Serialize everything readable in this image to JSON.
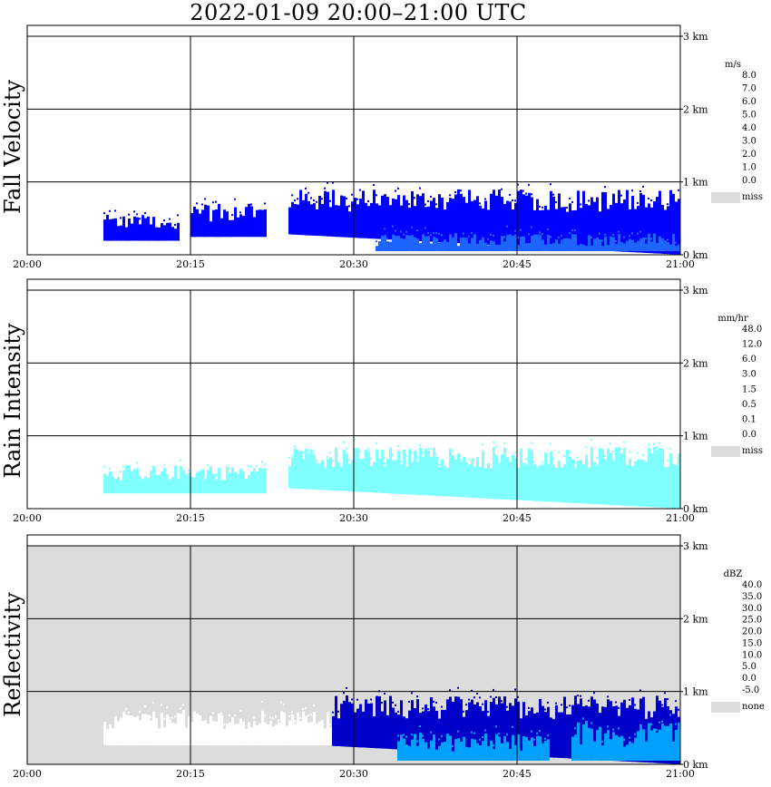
{
  "title": "2022-01-09   20:00–21:00 UTC",
  "chart_data": [
    {
      "type": "heatmap",
      "title": "Fall Velocity",
      "xlabel": "",
      "ylabel": "",
      "x_ticks": [
        "20:00",
        "20:15",
        "20:30",
        "20:45",
        "21:00"
      ],
      "y_ticks": [
        "0 km",
        "1 km",
        "2 km",
        "3 km"
      ],
      "xlim": [
        "20:00",
        "21:00"
      ],
      "ylim_km": [
        0,
        3.0
      ],
      "grid": true,
      "legend": {
        "unit": "m/s",
        "labels": [
          "8.0",
          "7.0",
          "6.0",
          "5.0",
          "4.0",
          "3.0",
          "2.0",
          "1.0",
          "0.0",
          "miss"
        ],
        "colors": [
          "#ff00ff",
          "#ff0000",
          "#ff7f00",
          "#ffbf00",
          "#c8ff00",
          "#00c800",
          "#00ffd0",
          "#00a0ff",
          "#0000ff"
        ],
        "miss_color": "#dcdcdc"
      },
      "echo_regions": [
        {
          "start_min": 7,
          "end_min": 14,
          "top_km": 0.55,
          "color": "#0000ff"
        },
        {
          "start_min": 15,
          "end_min": 22,
          "top_km": 0.7,
          "color": "#0000ff"
        },
        {
          "start_min": 24,
          "end_min": 60,
          "top_km": 0.9,
          "color": "#0000ff"
        }
      ],
      "secondary_regions": [
        {
          "start_min": 32,
          "end_min": 60,
          "top_km": 0.3,
          "color": "#1e64ff"
        }
      ]
    },
    {
      "type": "heatmap",
      "title": "Rain Intensity",
      "xlabel": "",
      "ylabel": "",
      "x_ticks": [
        "20:00",
        "20:15",
        "20:30",
        "20:45",
        "21:00"
      ],
      "y_ticks": [
        "0 km",
        "1 km",
        "2 km",
        "3 km"
      ],
      "xlim": [
        "20:00",
        "21:00"
      ],
      "ylim_km": [
        0,
        3.0
      ],
      "grid": true,
      "legend": {
        "unit": "mm/hr",
        "labels": [
          "48.0",
          "12.0",
          "6.0",
          "3.0",
          "1.5",
          "0.5",
          "0.1",
          "0.0",
          "miss"
        ],
        "colors": [
          "#000000",
          "#3c0030",
          "#a000a0",
          "#ff00ff",
          "#ff0000",
          "#ff7f00",
          "#ffff00",
          "#c8ff00",
          "#60ff30",
          "#00c800",
          "#0000ff",
          "#0078ff",
          "#00c8ff",
          "#80ffff",
          "#ffffff"
        ],
        "miss_color": "#dcdcdc"
      },
      "echo_regions": [
        {
          "start_min": 7,
          "end_min": 22,
          "top_km": 0.6,
          "color": "#80ffff"
        },
        {
          "start_min": 24,
          "end_min": 60,
          "top_km": 0.85,
          "color": "#80ffff"
        }
      ],
      "secondary_regions": []
    },
    {
      "type": "heatmap",
      "title": "Reflectivity",
      "xlabel": "",
      "ylabel": "",
      "x_ticks": [
        "20:00",
        "20:15",
        "20:30",
        "20:45",
        "21:00"
      ],
      "y_ticks": [
        "0 km",
        "1 km",
        "2 km",
        "3 km"
      ],
      "xlim": [
        "20:00",
        "21:00"
      ],
      "ylim_km": [
        0,
        3.0
      ],
      "grid": true,
      "background": "#dcdcdc",
      "legend": {
        "unit": "dBZ",
        "labels": [
          "40.0",
          "35.0",
          "30.0",
          "25.0",
          "20.0",
          "15.0",
          "10.0",
          "5.0",
          "0.0",
          "-5.0",
          "none"
        ],
        "colors": [
          "#c040c0",
          "#a000a0",
          "#ff00ff",
          "#ff0000",
          "#ff7f00",
          "#ffff00",
          "#00c800",
          "#00ffff",
          "#00a0ff",
          "#0000c8"
        ],
        "miss_color": "#dcdcdc"
      },
      "echo_regions": [
        {
          "start_min": 7,
          "end_min": 28,
          "top_km": 0.75,
          "color": "#ffffff"
        },
        {
          "start_min": 28,
          "end_min": 60,
          "top_km": 0.95,
          "color": "#0000c8"
        }
      ],
      "secondary_regions": [
        {
          "start_min": 34,
          "end_min": 48,
          "top_km": 0.45,
          "color": "#00a0ff"
        },
        {
          "start_min": 50,
          "end_min": 60,
          "top_km": 0.6,
          "color": "#00a0ff"
        }
      ]
    }
  ]
}
